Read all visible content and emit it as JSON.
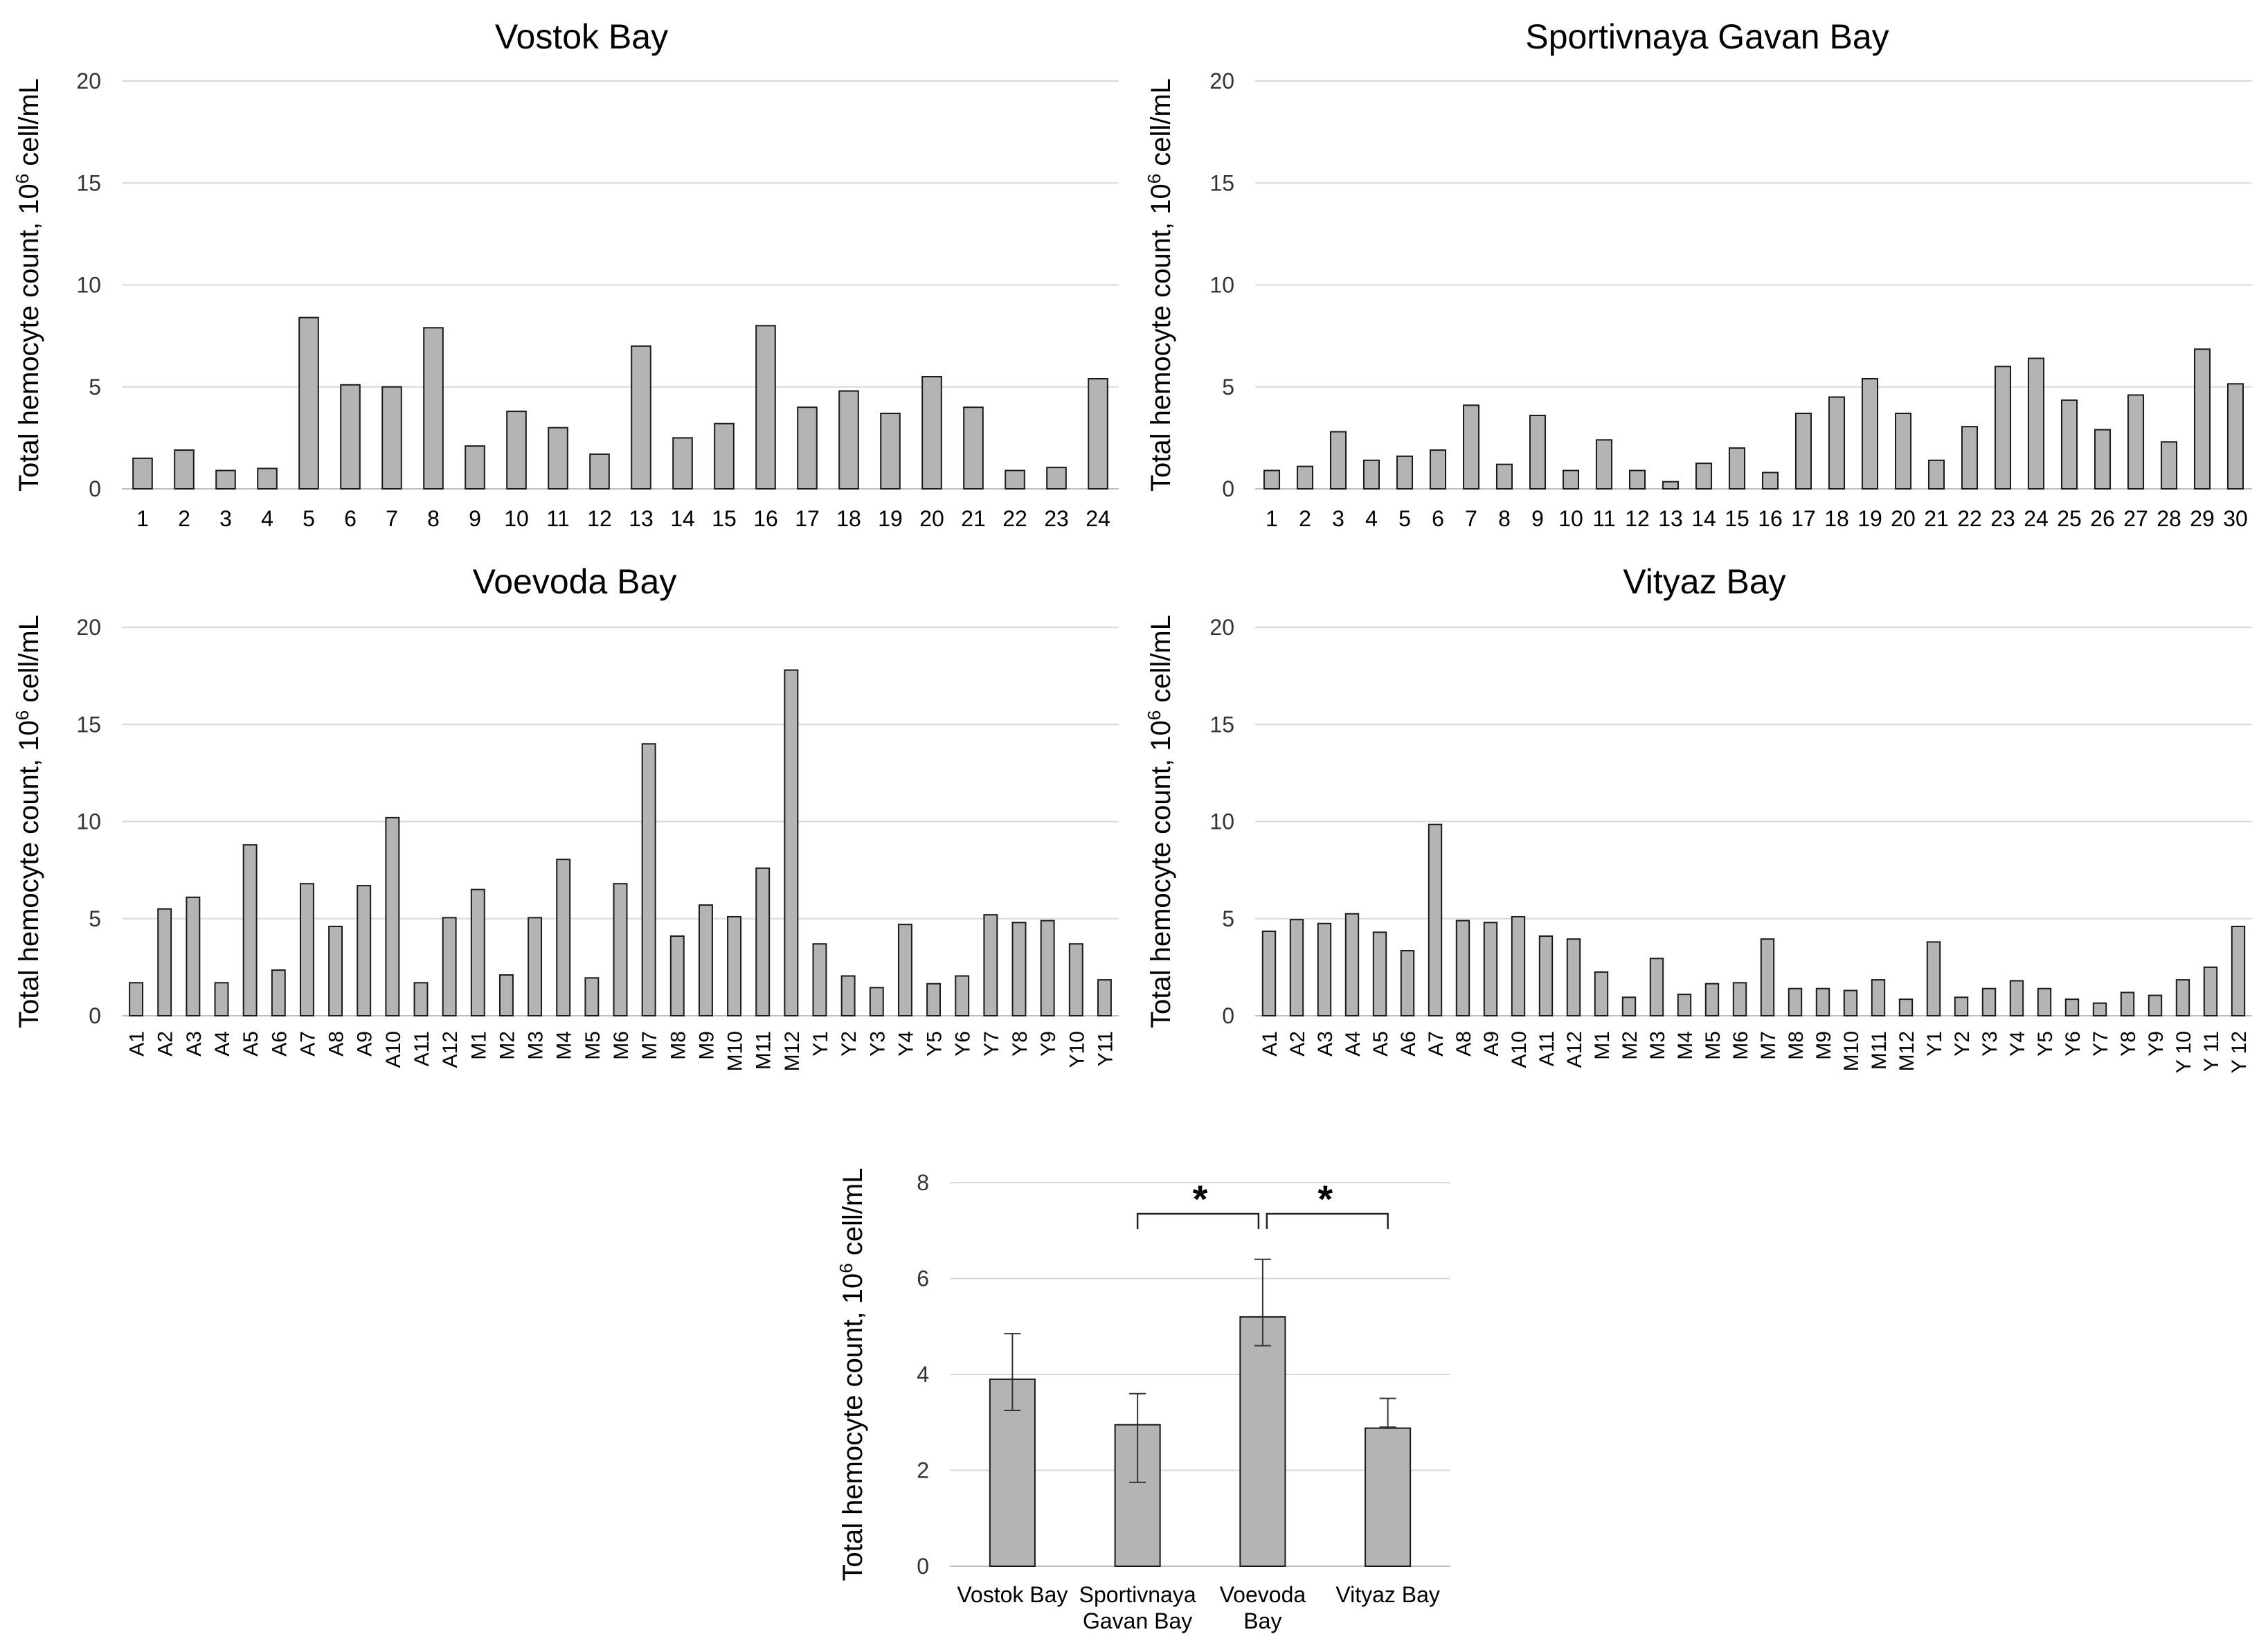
{
  "chart_data": [
    {
      "type": "bar",
      "title": "Vostok Bay",
      "ylabel": "Total hemocyte count, 10",
      "ylabel_sup": "6",
      "ylabel_suffix": " cell/mL",
      "ylim": [
        0,
        20
      ],
      "yticks": [
        0,
        5,
        10,
        15,
        20
      ],
      "grid": true,
      "categories": [
        "1",
        "2",
        "3",
        "4",
        "5",
        "6",
        "7",
        "8",
        "9",
        "10",
        "11",
        "12",
        "13",
        "14",
        "15",
        "16",
        "17",
        "18",
        "19",
        "20",
        "21",
        "22",
        "23",
        "24"
      ],
      "values": [
        1.5,
        1.9,
        0.9,
        1.0,
        8.4,
        5.1,
        5.0,
        7.9,
        2.1,
        3.8,
        3.0,
        1.7,
        7.0,
        2.5,
        3.2,
        8.0,
        4.0,
        4.8,
        3.7,
        5.5,
        4.0,
        0.9,
        1.05,
        5.4
      ],
      "bar_color": "#b4b4b4"
    },
    {
      "type": "bar",
      "title": "Sportivnaya Gavan Bay",
      "ylabel": "Total hemocyte count, 10",
      "ylabel_sup": "6",
      "ylabel_suffix": " cell/mL",
      "ylim": [
        0,
        20
      ],
      "yticks": [
        0,
        5,
        10,
        15,
        20
      ],
      "grid": true,
      "categories": [
        "1",
        "2",
        "3",
        "4",
        "5",
        "6",
        "7",
        "8",
        "9",
        "10",
        "11",
        "12",
        "13",
        "14",
        "15",
        "16",
        "17",
        "18",
        "19",
        "20",
        "21",
        "22",
        "23",
        "24",
        "25",
        "26",
        "27",
        "28",
        "29",
        "30"
      ],
      "values": [
        0.9,
        1.1,
        2.8,
        1.4,
        1.6,
        1.9,
        4.1,
        1.2,
        3.6,
        0.9,
        2.4,
        0.9,
        0.35,
        1.25,
        2.0,
        0.8,
        3.7,
        4.5,
        5.4,
        3.7,
        1.4,
        3.05,
        6.0,
        6.4,
        4.35,
        2.9,
        4.6,
        2.3,
        6.85,
        5.15
      ],
      "bar_color": "#b4b4b4"
    },
    {
      "type": "bar",
      "title": "Voevoda Bay",
      "ylabel": "Total hemocyte count, 10",
      "ylabel_sup": "6",
      "ylabel_suffix": " cell/mL",
      "ylim": [
        0,
        20
      ],
      "yticks": [
        0,
        5,
        10,
        15,
        20
      ],
      "grid": true,
      "categories": [
        "A1",
        "A2",
        "A3",
        "A4",
        "A5",
        "A6",
        "A7",
        "A8",
        "A9",
        "A10",
        "A11",
        "A12",
        "M1",
        "M2",
        "M3",
        "M4",
        "M5",
        "M6",
        "M7",
        "M8",
        "M9",
        "M10",
        "M11",
        "M12",
        "Y1",
        "Y2",
        "Y3",
        "Y4",
        "Y5",
        "Y6",
        "Y7",
        "Y8",
        "Y9",
        "Y10",
        "Y11"
      ],
      "values": [
        1.7,
        5.5,
        6.1,
        1.7,
        8.8,
        2.35,
        6.8,
        4.6,
        6.7,
        10.2,
        1.7,
        5.05,
        6.5,
        2.1,
        5.05,
        8.05,
        1.95,
        6.8,
        14.0,
        4.1,
        5.7,
        5.1,
        7.6,
        17.8,
        3.7,
        2.05,
        1.45,
        4.7,
        1.65,
        2.05,
        5.2,
        4.8,
        4.9,
        3.7,
        1.85
      ],
      "bar_color": "#b4b4b4"
    },
    {
      "type": "bar",
      "title": "Vityaz Bay",
      "ylabel": "Total hemocyte count, 10",
      "ylabel_sup": "6",
      "ylabel_suffix": " cell/mL",
      "ylim": [
        0,
        20
      ],
      "yticks": [
        0,
        5,
        10,
        15,
        20
      ],
      "grid": true,
      "categories": [
        "A1",
        "A2",
        "A3",
        "A4",
        "A5",
        "A6",
        "A7",
        "A8",
        "A9",
        "A10",
        "A11",
        "A12",
        "M1",
        "M2",
        "M3",
        "M4",
        "M5",
        "M6",
        "M7",
        "M8",
        "M9",
        "M10",
        "M11",
        "M12",
        "Y1",
        "Y2",
        "Y3",
        "Y4",
        "Y5",
        "Y6",
        "Y7",
        "Y8",
        "Y9",
        "Y 10",
        "Y 11",
        "Y 12"
      ],
      "values": [
        4.35,
        4.95,
        4.75,
        5.25,
        4.3,
        3.35,
        9.85,
        4.9,
        4.8,
        5.1,
        4.1,
        3.95,
        2.25,
        0.95,
        2.95,
        1.1,
        1.65,
        1.7,
        3.95,
        1.4,
        1.4,
        1.3,
        1.85,
        0.85,
        3.8,
        0.95,
        1.4,
        1.8,
        1.4,
        0.85,
        0.65,
        1.2,
        1.05,
        1.85,
        2.5,
        4.6
      ],
      "bar_color": "#b4b4b4"
    },
    {
      "type": "bar",
      "title": "",
      "ylabel": "Total hemocyte count, 10",
      "ylabel_sup": "6",
      "ylabel_suffix": " cell/mL",
      "ylim": [
        0,
        8
      ],
      "yticks": [
        0,
        2,
        4,
        6,
        8
      ],
      "grid": true,
      "categories": [
        [
          "Vostok Bay"
        ],
        [
          "Sportivnaya",
          "Gavan Bay"
        ],
        [
          "Voevoda",
          "Bay"
        ],
        [
          "Vityaz Bay"
        ]
      ],
      "values": [
        3.9,
        2.95,
        5.2,
        2.88
      ],
      "error_high": [
        4.85,
        3.6,
        6.4,
        3.5
      ],
      "error_low": [
        3.25,
        1.75,
        4.6,
        2.9
      ],
      "significance": [
        {
          "from": 1,
          "to": 2,
          "label": "*"
        },
        {
          "from": 2,
          "to": 3,
          "label": "*"
        }
      ],
      "bar_color": "#b4b4b4"
    }
  ]
}
